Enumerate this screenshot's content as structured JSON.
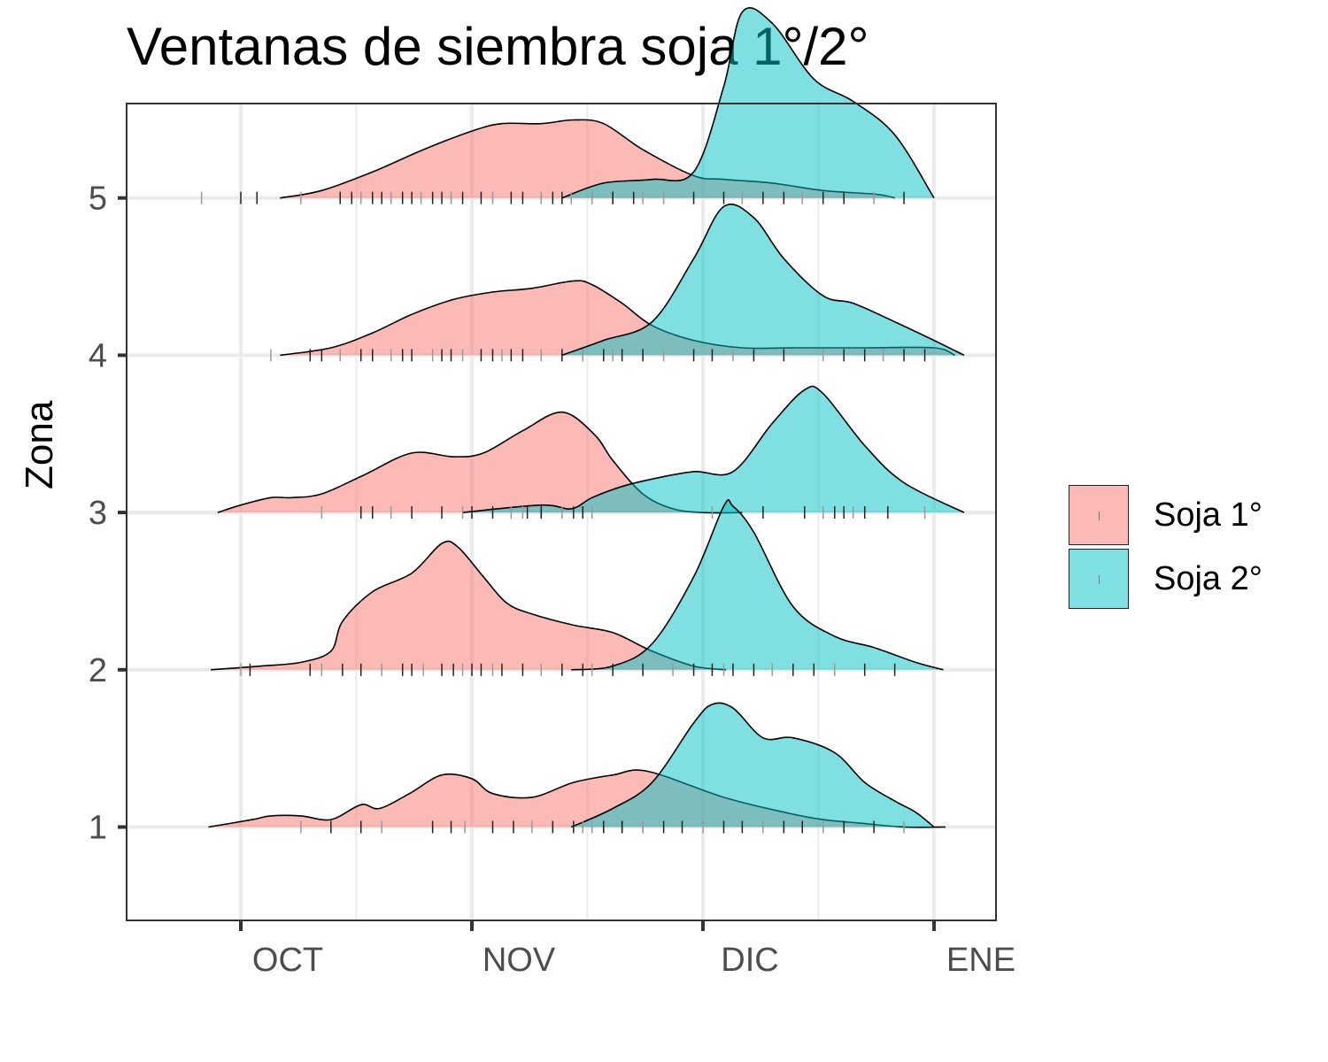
{
  "chart_data": {
    "type": "ridgeline-density",
    "title": "Ventanas de siembra soja 1°/2°",
    "xlabel": "",
    "ylabel": "Zona",
    "x_ticks": [
      "OCT",
      "NOV",
      "DIC",
      "ENE"
    ],
    "y_ticks": [
      "1",
      "2",
      "3",
      "4",
      "5"
    ],
    "ylim": [
      0.4,
      5.6
    ],
    "grid": true,
    "legend_position": "right",
    "series": [
      {
        "name": "Soja 1°",
        "color": "#F8766D",
        "ridges": [
          {
            "zona": 1,
            "x": [
              -0.14,
              0.05,
              0.13,
              0.26,
              0.39,
              0.52,
              0.6,
              0.73,
              0.87,
              1.0,
              1.09,
              1.26,
              1.44,
              1.61,
              1.76,
              2.09,
              2.35,
              2.52,
              2.69,
              2.87,
              3.05
            ],
            "density": [
              0.0,
              0.02,
              0.03,
              0.03,
              0.02,
              0.06,
              0.05,
              0.09,
              0.14,
              0.13,
              0.09,
              0.08,
              0.12,
              0.14,
              0.15,
              0.08,
              0.04,
              0.02,
              0.01,
              0.0,
              0.0
            ]
          },
          {
            "zona": 2,
            "x": [
              -0.13,
              0.09,
              0.26,
              0.39,
              0.44,
              0.57,
              0.74,
              0.87,
              0.94,
              1.05,
              1.15,
              1.26,
              1.44,
              1.61,
              1.78,
              1.96,
              2.1
            ],
            "density": [
              0.0,
              0.01,
              0.02,
              0.05,
              0.13,
              0.21,
              0.26,
              0.34,
              0.33,
              0.25,
              0.18,
              0.15,
              0.12,
              0.1,
              0.05,
              0.01,
              0.0
            ]
          },
          {
            "zona": 3,
            "x": [
              -0.1,
              0.0,
              0.13,
              0.22,
              0.35,
              0.53,
              0.74,
              0.92,
              1.05,
              1.22,
              1.39,
              1.53,
              1.61,
              1.74,
              1.87,
              2.0,
              2.17
            ],
            "density": [
              0.0,
              0.02,
              0.04,
              0.04,
              0.05,
              0.1,
              0.16,
              0.15,
              0.16,
              0.22,
              0.27,
              0.21,
              0.14,
              0.05,
              0.01,
              0.0,
              0.0
            ]
          },
          {
            "zona": 4,
            "x": [
              0.17,
              0.39,
              0.57,
              0.74,
              0.92,
              1.09,
              1.26,
              1.44,
              1.52,
              1.65,
              1.78,
              1.96,
              2.17,
              2.4,
              2.7,
              3.0,
              3.09
            ],
            "density": [
              0.0,
              0.02,
              0.06,
              0.11,
              0.15,
              0.17,
              0.18,
              0.2,
              0.19,
              0.14,
              0.08,
              0.04,
              0.02,
              0.02,
              0.02,
              0.02,
              0.0
            ]
          },
          {
            "zona": 5,
            "x": [
              0.17,
              0.35,
              0.57,
              0.79,
              1.0,
              1.13,
              1.3,
              1.44,
              1.57,
              1.74,
              1.96,
              2.09,
              2.3,
              2.52,
              2.75,
              2.83
            ],
            "density": [
              0.0,
              0.02,
              0.07,
              0.13,
              0.18,
              0.2,
              0.2,
              0.21,
              0.2,
              0.13,
              0.06,
              0.05,
              0.04,
              0.02,
              0.01,
              0.0
            ]
          }
        ]
      },
      {
        "name": "Soja 2°",
        "color": "#00BFC4",
        "ridges": [
          {
            "zona": 1,
            "x": [
              1.43,
              1.61,
              1.78,
              1.96,
              2.04,
              2.13,
              2.26,
              2.39,
              2.57,
              2.7,
              2.83,
              2.92,
              3.0
            ],
            "density": [
              0.0,
              0.05,
              0.12,
              0.28,
              0.33,
              0.32,
              0.24,
              0.24,
              0.2,
              0.12,
              0.07,
              0.04,
              0.0
            ]
          },
          {
            "zona": 2,
            "x": [
              1.43,
              1.61,
              1.78,
              1.96,
              2.09,
              2.13,
              2.22,
              2.39,
              2.57,
              2.74,
              2.92,
              3.04
            ],
            "density": [
              0.0,
              0.01,
              0.07,
              0.25,
              0.44,
              0.44,
              0.37,
              0.17,
              0.09,
              0.06,
              0.02,
              0.0
            ]
          },
          {
            "zona": 3,
            "x": [
              0.96,
              1.3,
              1.43,
              1.52,
              1.65,
              1.78,
              1.96,
              2.13,
              2.3,
              2.44,
              2.52,
              2.7,
              2.87,
              3.13
            ],
            "density": [
              0.0,
              0.02,
              0.01,
              0.04,
              0.07,
              0.09,
              0.11,
              0.11,
              0.24,
              0.33,
              0.32,
              0.18,
              0.08,
              0.0
            ]
          },
          {
            "zona": 4,
            "x": [
              1.39,
              1.57,
              1.78,
              1.96,
              2.09,
              2.22,
              2.35,
              2.52,
              2.65,
              2.83,
              3.0,
              3.13
            ],
            "density": [
              0.0,
              0.04,
              0.09,
              0.26,
              0.4,
              0.37,
              0.26,
              0.16,
              0.14,
              0.09,
              0.04,
              0.0
            ]
          },
          {
            "zona": 5,
            "x": [
              1.39,
              1.57,
              1.78,
              1.96,
              2.09,
              2.17,
              2.3,
              2.48,
              2.65,
              2.83,
              3.0
            ],
            "density": [
              0.0,
              0.04,
              0.05,
              0.07,
              0.3,
              0.5,
              0.47,
              0.32,
              0.26,
              0.17,
              0.0
            ]
          }
        ]
      }
    ],
    "rug": {
      "series1": [
        [
          0.26,
          0.39,
          0.52,
          0.61,
          0.83,
          0.91,
          0.97,
          1.09,
          1.18,
          1.26,
          1.35,
          1.44,
          1.52,
          1.57,
          1.65,
          1.74
        ],
        [
          0.0,
          0.04,
          0.3,
          0.35,
          0.44,
          0.52,
          0.61,
          0.7,
          0.74,
          0.79,
          0.87,
          0.92,
          0.96,
          1.0,
          1.04,
          1.09,
          1.13,
          1.22,
          1.3,
          1.39,
          1.48
        ],
        [
          0.35,
          0.52,
          0.57,
          0.65,
          0.74,
          0.87,
          0.96,
          1.0,
          1.09,
          1.17,
          1.24,
          1.3,
          1.39,
          1.44,
          1.48,
          1.52
        ],
        [
          0.13,
          0.3,
          0.35,
          0.43,
          0.52,
          0.57,
          0.65,
          0.7,
          0.74,
          0.83,
          0.87,
          0.91,
          0.96,
          1.04,
          1.09,
          1.13,
          1.17,
          1.22,
          1.3,
          1.39,
          1.48,
          1.61,
          1.74
        ],
        [
          -0.17,
          0.0,
          0.07,
          0.26,
          0.43,
          0.48,
          0.52,
          0.57,
          0.61,
          0.65,
          0.7,
          0.74,
          0.78,
          0.83,
          0.87,
          0.91,
          0.96,
          1.04,
          1.09,
          1.17,
          1.22,
          1.3,
          1.35,
          1.39,
          1.43,
          1.52,
          1.61,
          1.74
        ]
      ],
      "series2": [
        [
          1.48,
          1.57,
          1.65,
          1.74,
          1.83,
          1.91,
          2.0,
          2.09,
          2.17,
          2.26,
          2.35,
          2.43,
          2.52,
          2.61,
          2.74,
          2.87
        ],
        [
          1.52,
          1.61,
          1.74,
          1.87,
          1.96,
          2.04,
          2.09,
          2.13,
          2.22,
          2.3,
          2.39,
          2.48,
          2.57,
          2.7,
          2.83
        ],
        [
          1.22,
          1.3,
          1.48,
          2.04,
          2.26,
          2.44,
          2.52,
          2.57,
          2.61,
          2.65,
          2.7,
          2.8,
          2.96
        ],
        [
          1.48,
          1.57,
          1.65,
          1.83,
          1.96,
          2.04,
          2.13,
          2.22,
          2.35,
          2.52,
          2.61,
          2.7,
          2.78,
          2.87,
          2.96
        ],
        [
          1.52,
          1.61,
          1.7,
          1.83,
          1.96,
          2.09,
          2.17,
          2.26,
          2.35,
          2.43,
          2.52,
          2.61,
          2.74,
          2.87
        ]
      ]
    }
  },
  "legend": {
    "items": [
      {
        "label": "Soja 1°",
        "color": "#F8766D"
      },
      {
        "label": "Soja 2°",
        "color": "#00BFC4"
      }
    ]
  }
}
